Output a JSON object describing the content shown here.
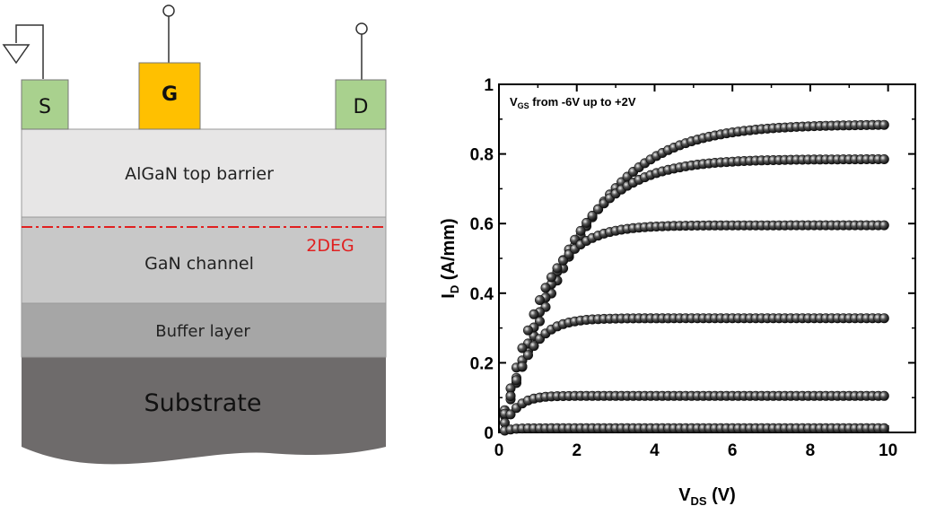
{
  "device_diagram": {
    "source_label": "S",
    "gate_label": "G",
    "drain_label": "D",
    "layers": {
      "barrier": "AlGaN top barrier",
      "channel": "GaN channel",
      "twodeg": "2DEG",
      "buffer": "Buffer layer",
      "substrate": "Substrate"
    },
    "colors": {
      "contact": "#a9d18e",
      "gate": "#ffc000",
      "barrier": "#e7e6e6",
      "channel": "#c8c8c8",
      "buffer": "#a6a6a6",
      "substrate": "#6e6b6b",
      "twodeg_line": "#e02020"
    }
  },
  "chart_data": {
    "type": "scatter",
    "annotation": {
      "prefix": "V",
      "sub": "GS",
      "suffix": " from -6V up to +2V"
    },
    "xlabel": {
      "main": "V",
      "sub": "DS",
      "unit": " (V)"
    },
    "ylabel": {
      "main": "I",
      "sub": "D",
      "unit": " (A/mm)"
    },
    "xlim": [
      0,
      10.7
    ],
    "ylim": [
      0,
      1.0
    ],
    "xticks": [
      "0",
      "2",
      "4",
      "6",
      "8",
      "10"
    ],
    "yticks": [
      "0",
      "0.2",
      "0.4",
      "0.6",
      "0.8",
      "1"
    ],
    "ytick_values": [
      0,
      0.2,
      0.4,
      0.6,
      0.8,
      1.0
    ],
    "xtick_values": [
      0,
      2,
      4,
      6,
      8,
      10
    ],
    "grid": false,
    "legend": "none",
    "marker_color": "#222222",
    "series": [
      {
        "isat": 0.885,
        "k": 0.36
      },
      {
        "isat": 0.785,
        "k": 0.45
      },
      {
        "isat": 0.595,
        "k": 0.72
      },
      {
        "isat": 0.328,
        "k": 1.1
      },
      {
        "isat": 0.105,
        "k": 1.8
      },
      {
        "isat": 0.012,
        "k": 3.0
      }
    ],
    "x_step": 0.15
  }
}
